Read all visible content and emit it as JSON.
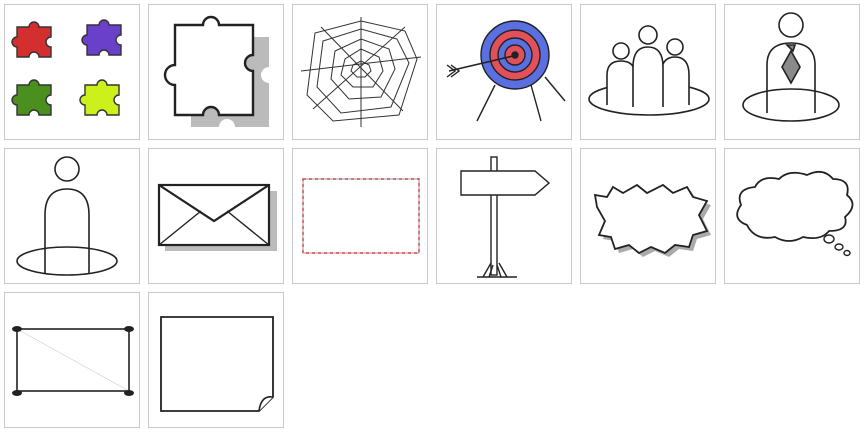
{
  "gallery": {
    "items": [
      {
        "icon": "puzzle-pieces-icon"
      },
      {
        "icon": "puzzle-piece-icon"
      },
      {
        "icon": "spider-web-icon"
      },
      {
        "icon": "target-arrow-icon"
      },
      {
        "icon": "team-people-icon"
      },
      {
        "icon": "businessman-icon"
      },
      {
        "icon": "person-icon"
      },
      {
        "icon": "envelope-icon"
      },
      {
        "icon": "dashed-frame-icon"
      },
      {
        "icon": "signpost-icon"
      },
      {
        "icon": "explosion-bubble-icon"
      },
      {
        "icon": "thought-cloud-icon"
      },
      {
        "icon": "pinned-frame-icon"
      },
      {
        "icon": "paper-sheet-icon"
      }
    ]
  },
  "colors": {
    "puzzle_red": "#d42f2f",
    "puzzle_purple": "#6a3fc9",
    "puzzle_green": "#4b8f1f",
    "puzzle_yellow": "#ccf01b",
    "target_blue": "#5a6fe0",
    "target_red": "#e2505a",
    "tie_gray": "#8a8a8a",
    "dashed_red": "#d04040",
    "tile_border": "#c9c9c9"
  }
}
